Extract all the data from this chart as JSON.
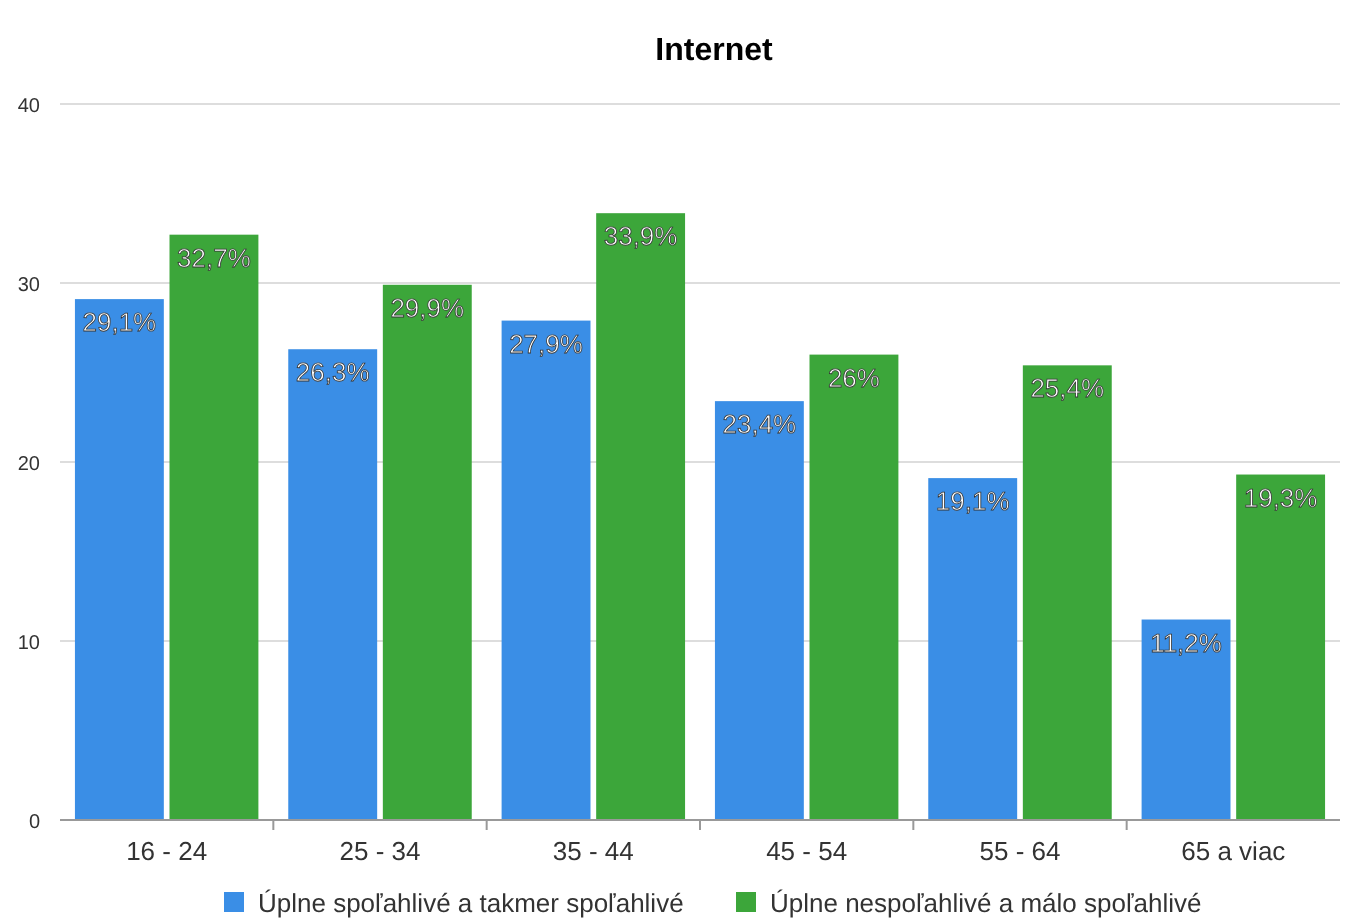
{
  "chart_data": {
    "type": "bar",
    "title": "Internet",
    "categories": [
      "16 - 24",
      "25 - 34",
      "35 - 44",
      "45 - 54",
      "55 - 64",
      "65 a viac"
    ],
    "series": [
      {
        "name": "Úplne spoľahlivé a takmer spoľahlivé",
        "color": "#3a8ee6",
        "values": [
          29.1,
          26.3,
          27.9,
          23.4,
          19.1,
          11.2
        ],
        "value_labels": [
          "29,1%",
          "26,3%",
          "27,9%",
          "23,4%",
          "19,1%",
          "11,2%"
        ]
      },
      {
        "name": "Úplne nespoľahlivé a málo spoľahlivé",
        "color": "#3ca63a",
        "values": [
          32.7,
          29.9,
          33.9,
          26,
          25.4,
          19.3
        ],
        "value_labels": [
          "32,7%",
          "29,9%",
          "33,9%",
          "26%",
          "25,4%",
          "19,3%"
        ]
      }
    ],
    "ylim": [
      0,
      40
    ],
    "yticks": [
      0,
      10,
      20,
      30,
      40
    ],
    "grid": "y",
    "legend": "bottom"
  }
}
